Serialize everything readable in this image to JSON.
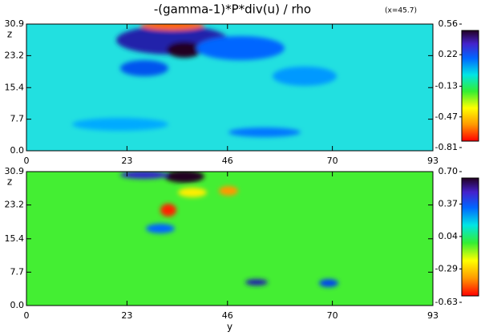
{
  "chart_data": [
    {
      "type": "heatmap",
      "title": "-(gamma-1)*P*div(u) / rho",
      "annotation": "(x=45.7)",
      "ylabel": "z",
      "xlim": [
        0,
        93
      ],
      "xticks": [
        0,
        23,
        46,
        70,
        93
      ],
      "ylim": [
        0,
        30.9
      ],
      "yticks": [
        {
          "value": 0,
          "label": "0.0"
        },
        7.7,
        15.4,
        23.2,
        30.9
      ],
      "clim": [
        -0.81,
        0.56
      ],
      "cticks": [
        -0.81,
        -0.47,
        -0.13,
        0.22,
        0.56
      ],
      "background": "#22e0e0"
    },
    {
      "type": "heatmap",
      "xlabel": "y",
      "ylabel": "z",
      "xlim": [
        0,
        93
      ],
      "xticks": [
        0,
        23,
        46,
        70,
        93
      ],
      "ylim": [
        0,
        30.9
      ],
      "yticks": [
        {
          "value": 0,
          "label": "0.0"
        },
        7.7,
        15.4,
        23.2,
        30.9
      ],
      "clim": [
        -0.63,
        0.7
      ],
      "cticks": [
        -0.63,
        -0.29,
        0.04,
        0.37,
        {
          "value": 0.7,
          "label": "0.70"
        }
      ],
      "background": "#44ee33"
    }
  ]
}
